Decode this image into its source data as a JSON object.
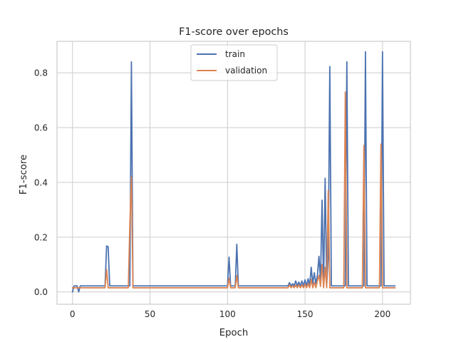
{
  "chart_data": {
    "type": "line",
    "title": "F1-score over epochs",
    "xlabel": "Epoch",
    "ylabel": "F1-score",
    "xlim": [
      -10,
      218
    ],
    "ylim": [
      -0.045,
      0.915
    ],
    "xticks": [
      0,
      50,
      100,
      150,
      200
    ],
    "yticks": [
      0.0,
      0.2,
      0.4,
      0.6,
      0.8
    ],
    "grid": true,
    "legend_position": "top-center",
    "series": [
      {
        "name": "train",
        "color": "#4c72b0",
        "points": [
          [
            0,
            0.0
          ],
          [
            1,
            0.022
          ],
          [
            2,
            0.022
          ],
          [
            3,
            0.022
          ],
          [
            4,
            0.0
          ],
          [
            5,
            0.022
          ],
          [
            20,
            0.022
          ],
          [
            21,
            0.022
          ],
          [
            22,
            0.168
          ],
          [
            23,
            0.165
          ],
          [
            24,
            0.022
          ],
          [
            36,
            0.022
          ],
          [
            37,
            0.022
          ],
          [
            38,
            0.84
          ],
          [
            39,
            0.022
          ],
          [
            99,
            0.022
          ],
          [
            100,
            0.022
          ],
          [
            101,
            0.127
          ],
          [
            102,
            0.022
          ],
          [
            105,
            0.022
          ],
          [
            106,
            0.174
          ],
          [
            107,
            0.022
          ],
          [
            139,
            0.022
          ],
          [
            140,
            0.034
          ],
          [
            141,
            0.022
          ],
          [
            142,
            0.03
          ],
          [
            143,
            0.022
          ],
          [
            144,
            0.04
          ],
          [
            145,
            0.022
          ],
          [
            146,
            0.036
          ],
          [
            147,
            0.022
          ],
          [
            148,
            0.04
          ],
          [
            149,
            0.022
          ],
          [
            150,
            0.044
          ],
          [
            151,
            0.022
          ],
          [
            152,
            0.048
          ],
          [
            153,
            0.022
          ],
          [
            154,
            0.09
          ],
          [
            155,
            0.03
          ],
          [
            156,
            0.07
          ],
          [
            157,
            0.03
          ],
          [
            158,
            0.06
          ],
          [
            159,
            0.13
          ],
          [
            160,
            0.04
          ],
          [
            161,
            0.335
          ],
          [
            162,
            0.022
          ],
          [
            163,
            0.415
          ],
          [
            164,
            0.022
          ],
          [
            165,
            0.13
          ],
          [
            166,
            0.823
          ],
          [
            167,
            0.022
          ],
          [
            175,
            0.022
          ],
          [
            176,
            0.022
          ],
          [
            177,
            0.84
          ],
          [
            178,
            0.022
          ],
          [
            187,
            0.022
          ],
          [
            188,
            0.022
          ],
          [
            189,
            0.877
          ],
          [
            190,
            0.022
          ],
          [
            198,
            0.022
          ],
          [
            199,
            0.022
          ],
          [
            200,
            0.877
          ],
          [
            201,
            0.022
          ],
          [
            208,
            0.022
          ]
        ]
      },
      {
        "name": "validation",
        "color": "#dd8452",
        "points": [
          [
            0,
            0.015
          ],
          [
            1,
            0.015
          ],
          [
            2,
            0.015
          ],
          [
            3,
            0.015
          ],
          [
            4,
            0.015
          ],
          [
            20,
            0.015
          ],
          [
            21,
            0.015
          ],
          [
            22,
            0.082
          ],
          [
            23,
            0.015
          ],
          [
            36,
            0.015
          ],
          [
            37,
            0.25
          ],
          [
            38,
            0.42
          ],
          [
            39,
            0.015
          ],
          [
            100,
            0.015
          ],
          [
            101,
            0.05
          ],
          [
            102,
            0.015
          ],
          [
            105,
            0.015
          ],
          [
            106,
            0.06
          ],
          [
            107,
            0.015
          ],
          [
            139,
            0.015
          ],
          [
            140,
            0.025
          ],
          [
            141,
            0.015
          ],
          [
            142,
            0.022
          ],
          [
            143,
            0.015
          ],
          [
            144,
            0.025
          ],
          [
            145,
            0.015
          ],
          [
            146,
            0.025
          ],
          [
            147,
            0.015
          ],
          [
            148,
            0.025
          ],
          [
            149,
            0.015
          ],
          [
            150,
            0.028
          ],
          [
            151,
            0.015
          ],
          [
            152,
            0.03
          ],
          [
            153,
            0.015
          ],
          [
            154,
            0.045
          ],
          [
            155,
            0.015
          ],
          [
            156,
            0.035
          ],
          [
            157,
            0.015
          ],
          [
            158,
            0.04
          ],
          [
            159,
            0.06
          ],
          [
            160,
            0.02
          ],
          [
            161,
            0.1
          ],
          [
            162,
            0.015
          ],
          [
            163,
            0.09
          ],
          [
            164,
            0.015
          ],
          [
            165,
            0.37
          ],
          [
            166,
            0.015
          ],
          [
            174,
            0.015
          ],
          [
            175,
            0.015
          ],
          [
            176,
            0.73
          ],
          [
            177,
            0.015
          ],
          [
            186,
            0.015
          ],
          [
            187,
            0.015
          ],
          [
            188,
            0.535
          ],
          [
            189,
            0.015
          ],
          [
            197,
            0.015
          ],
          [
            198,
            0.015
          ],
          [
            199,
            0.54
          ],
          [
            200,
            0.015
          ],
          [
            208,
            0.015
          ]
        ]
      }
    ]
  }
}
